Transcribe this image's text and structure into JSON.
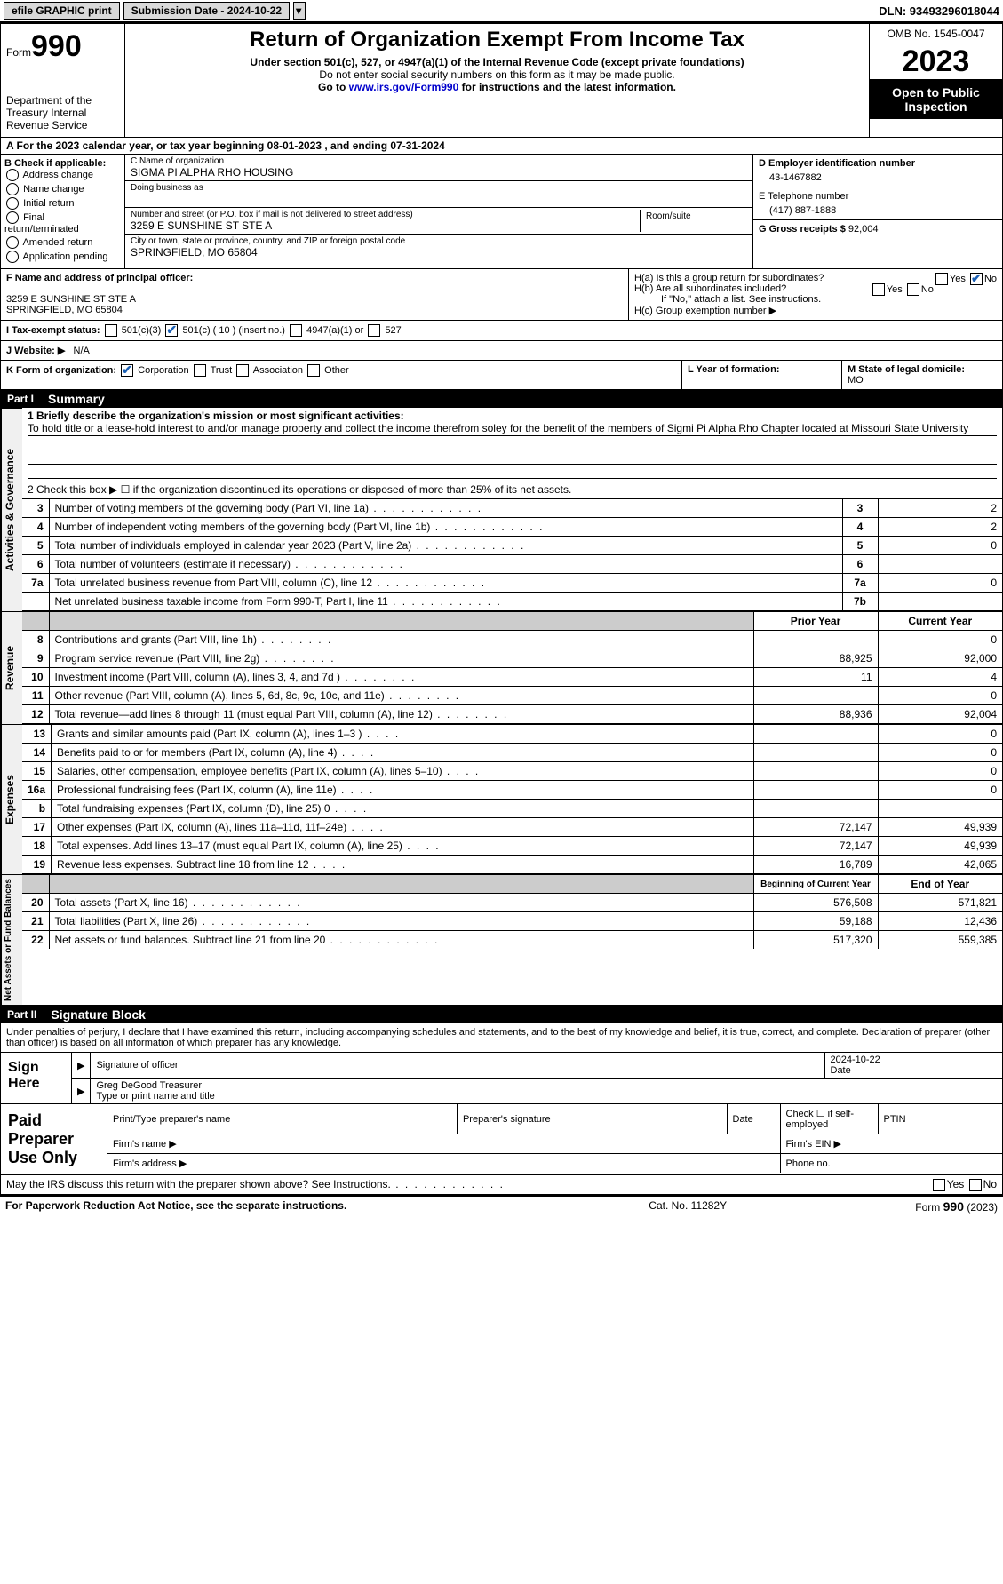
{
  "topbar": {
    "efile": "efile GRAPHIC print",
    "submission": "Submission Date - 2024-10-22",
    "dln": "DLN: 93493296018044"
  },
  "header": {
    "form_label": "Form",
    "form_number": "990",
    "dept": "Department of the Treasury Internal Revenue Service",
    "title": "Return of Organization Exempt From Income Tax",
    "sub1": "Under section 501(c), 527, or 4947(a)(1) of the Internal Revenue Code (except private foundations)",
    "sub2": "Do not enter social security numbers on this form as it may be made public.",
    "sub3_pre": "Go to ",
    "sub3_link": "www.irs.gov/Form990",
    "sub3_post": " for instructions and the latest information.",
    "omb": "OMB No. 1545-0047",
    "year": "2023",
    "inspection": "Open to Public Inspection"
  },
  "sectionA": "A   For the 2023 calendar year, or tax year beginning 08-01-2023    , and ending 07-31-2024",
  "boxB": {
    "title": "B Check if applicable:",
    "items": [
      "Address change",
      "Name change",
      "Initial return",
      "Final return/terminated",
      "Amended return",
      "Application pending"
    ]
  },
  "boxC": {
    "name_lbl": "C Name of organization",
    "name_val": "SIGMA PI ALPHA RHO HOUSING",
    "dba_lbl": "Doing business as",
    "addr_lbl": "Number and street (or P.O. box if mail is not delivered to street address)",
    "addr_val": "3259 E SUNSHINE ST STE A",
    "room_lbl": "Room/suite",
    "city_lbl": "City or town, state or province, country, and ZIP or foreign postal code",
    "city_val": "SPRINGFIELD, MO  65804"
  },
  "boxD": {
    "ein_lbl": "D Employer identification number",
    "ein_val": "43-1467882",
    "phone_lbl": "E Telephone number",
    "phone_val": "(417) 887-1888",
    "gross_lbl": "G Gross receipts $",
    "gross_val": "92,004"
  },
  "boxF": {
    "lbl": "F  Name and address of principal officer:",
    "line1": "3259 E SUNSHINE ST STE A",
    "line2": "SPRINGFIELD, MO  65804"
  },
  "boxH": {
    "ha_lbl": "H(a)  Is this a group return for subordinates?",
    "hb_lbl": "H(b)  Are all subordinates included?",
    "hb_note": "If \"No,\" attach a list. See instructions.",
    "hc_lbl": "H(c)  Group exemption number ▶",
    "yes": "Yes",
    "no": "No"
  },
  "boxI": {
    "lbl": "I    Tax-exempt status:",
    "opts": [
      "501(c)(3)",
      "501(c) ( 10 ) (insert no.)",
      "4947(a)(1) or",
      "527"
    ]
  },
  "boxJ": {
    "lbl": "J    Website: ▶",
    "val": "N/A"
  },
  "boxK": {
    "lbl": "K Form of organization:",
    "opts": [
      "Corporation",
      "Trust",
      "Association",
      "Other"
    ]
  },
  "boxL": {
    "lbl": "L Year of formation:"
  },
  "boxM": {
    "lbl": "M State of legal domicile:",
    "val": "MO"
  },
  "part1": {
    "label": "Part I",
    "title": "Summary"
  },
  "summary": {
    "vtab": "Activities & Governance",
    "line1_lbl": "1   Briefly describe the organization's mission or most significant activities:",
    "line1_val": "To hold title or a lease-hold interest to and/or manage property and collect the income therefrom soley for the benefit of the members of Sigmi Pi Alpha Rho Chapter located at Missouri State University",
    "line2": "2    Check this box ▶ ☐ if the organization discontinued its operations or disposed of more than 25% of its net assets.",
    "rows": [
      {
        "n": "3",
        "d": "Number of voting members of the governing body (Part VI, line 1a)",
        "k": "3",
        "v": "2"
      },
      {
        "n": "4",
        "d": "Number of independent voting members of the governing body (Part VI, line 1b)",
        "k": "4",
        "v": "2"
      },
      {
        "n": "5",
        "d": "Total number of individuals employed in calendar year 2023 (Part V, line 2a)",
        "k": "5",
        "v": "0"
      },
      {
        "n": "6",
        "d": "Total number of volunteers (estimate if necessary)",
        "k": "6",
        "v": ""
      },
      {
        "n": "7a",
        "d": "Total unrelated business revenue from Part VIII, column (C), line 12",
        "k": "7a",
        "v": "0"
      },
      {
        "n": "",
        "d": "Net unrelated business taxable income from Form 990-T, Part I, line 11",
        "k": "7b",
        "v": ""
      }
    ]
  },
  "revenue": {
    "vtab": "Revenue",
    "prior_hdr": "Prior Year",
    "curr_hdr": "Current Year",
    "rows": [
      {
        "n": "8",
        "d": "Contributions and grants (Part VIII, line 1h)",
        "p": "",
        "c": "0"
      },
      {
        "n": "9",
        "d": "Program service revenue (Part VIII, line 2g)",
        "p": "88,925",
        "c": "92,000"
      },
      {
        "n": "10",
        "d": "Investment income (Part VIII, column (A), lines 3, 4, and 7d )",
        "p": "11",
        "c": "4"
      },
      {
        "n": "11",
        "d": "Other revenue (Part VIII, column (A), lines 5, 6d, 8c, 9c, 10c, and 11e)",
        "p": "",
        "c": "0"
      },
      {
        "n": "12",
        "d": "Total revenue—add lines 8 through 11 (must equal Part VIII, column (A), line 12)",
        "p": "88,936",
        "c": "92,004"
      }
    ]
  },
  "expenses": {
    "vtab": "Expenses",
    "rows": [
      {
        "n": "13",
        "d": "Grants and similar amounts paid (Part IX, column (A), lines 1–3 )",
        "p": "",
        "c": "0"
      },
      {
        "n": "14",
        "d": "Benefits paid to or for members (Part IX, column (A), line 4)",
        "p": "",
        "c": "0"
      },
      {
        "n": "15",
        "d": "Salaries, other compensation, employee benefits (Part IX, column (A), lines 5–10)",
        "p": "",
        "c": "0"
      },
      {
        "n": "16a",
        "d": "Professional fundraising fees (Part IX, column (A), line 11e)",
        "p": "",
        "c": "0"
      },
      {
        "n": "b",
        "d": "Total fundraising expenses (Part IX, column (D), line 25) 0",
        "p": "shaded",
        "c": "shaded"
      },
      {
        "n": "17",
        "d": "Other expenses (Part IX, column (A), lines 11a–11d, 11f–24e)",
        "p": "72,147",
        "c": "49,939"
      },
      {
        "n": "18",
        "d": "Total expenses. Add lines 13–17 (must equal Part IX, column (A), line 25)",
        "p": "72,147",
        "c": "49,939"
      },
      {
        "n": "19",
        "d": "Revenue less expenses. Subtract line 18 from line 12",
        "p": "16,789",
        "c": "42,065"
      }
    ]
  },
  "netassets": {
    "vtab": "Net Assets or Fund Balances",
    "begin_hdr": "Beginning of Current Year",
    "end_hdr": "End of Year",
    "rows": [
      {
        "n": "20",
        "d": "Total assets (Part X, line 16)",
        "p": "576,508",
        "c": "571,821"
      },
      {
        "n": "21",
        "d": "Total liabilities (Part X, line 26)",
        "p": "59,188",
        "c": "12,436"
      },
      {
        "n": "22",
        "d": "Net assets or fund balances. Subtract line 21 from line 20",
        "p": "517,320",
        "c": "559,385"
      }
    ]
  },
  "part2": {
    "label": "Part II",
    "title": "Signature Block"
  },
  "sig": {
    "text": "Under penalties of perjury, I declare that I have examined this return, including accompanying schedules and statements, and to the best of my knowledge and belief, it is true, correct, and complete. Declaration of preparer (other than officer) is based on all information of which preparer has any knowledge.",
    "sign_here": "Sign Here",
    "sig_officer": "Signature of officer",
    "date_lbl": "Date",
    "date_val": "2024-10-22",
    "name": "Greg DeGood  Treasurer",
    "name_lbl": "Type or print name and title"
  },
  "preparer": {
    "lbl": "Paid Preparer Use Only",
    "h1": "Print/Type preparer's name",
    "h2": "Preparer's signature",
    "h3": "Date",
    "h4": "Check ☐ if self-employed",
    "h5": "PTIN",
    "firm_name": "Firm's name ▶",
    "firm_ein": "Firm's EIN ▶",
    "firm_addr": "Firm's address ▶",
    "phone": "Phone no."
  },
  "footer": {
    "q": "May the IRS discuss this return with the preparer shown above? See Instructions.",
    "yes": "Yes",
    "no": "No",
    "paperwork": "For Paperwork Reduction Act Notice, see the separate instructions.",
    "cat": "Cat. No. 11282Y",
    "form": "Form 990 (2023)"
  }
}
